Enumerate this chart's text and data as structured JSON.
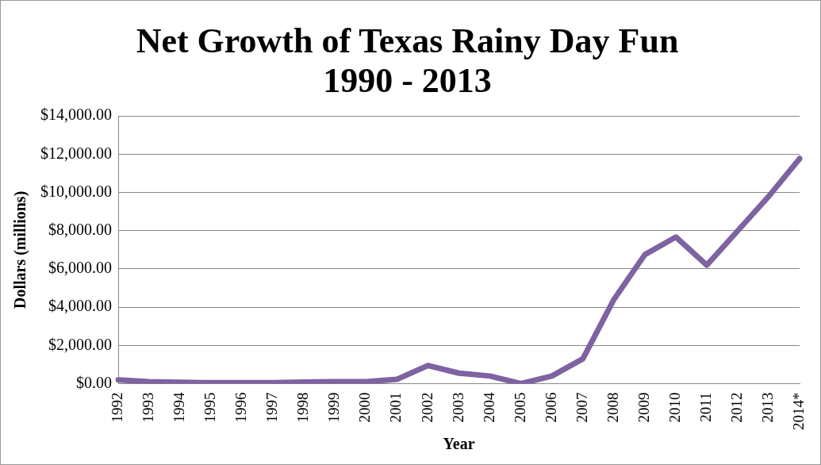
{
  "chart_data": {
    "type": "line",
    "title": "Net Growth of Texas Rainy Day Fun\n1990 - 2013",
    "xlabel": "Year",
    "ylabel": "Dollars (millions)",
    "categories": [
      "1992",
      "1993",
      "1994",
      "1995",
      "1996",
      "1997",
      "1998",
      "1999",
      "2000",
      "2001",
      "2002",
      "2003",
      "2004",
      "2005",
      "2006",
      "2007",
      "2008",
      "2009",
      "2010",
      "2011",
      "2012",
      "2013",
      "2014*"
    ],
    "series": [
      {
        "color": "#7e62a1",
        "values": [
          200,
          100,
          70,
          50,
          50,
          50,
          80,
          100,
          100,
          230,
          950,
          550,
          400,
          0,
          400,
          1300,
          4400,
          6750,
          7670,
          6200,
          8000,
          9800,
          11780
        ]
      }
    ],
    "ylim": [
      0,
      14000
    ],
    "yticks": [
      {
        "value": 0,
        "label": "$0.00"
      },
      {
        "value": 2000,
        "label": "$2,000.00"
      },
      {
        "value": 4000,
        "label": "$4,000.00"
      },
      {
        "value": 6000,
        "label": "$6,000.00"
      },
      {
        "value": 8000,
        "label": "$8,000.00"
      },
      {
        "value": 10000,
        "label": "$10,000.00"
      },
      {
        "value": 12000,
        "label": "$12,000.00"
      },
      {
        "value": 14000,
        "label": "$14,000.00"
      }
    ],
    "grid": "y",
    "legend": false,
    "marker": "none",
    "line_style": "solid"
  }
}
